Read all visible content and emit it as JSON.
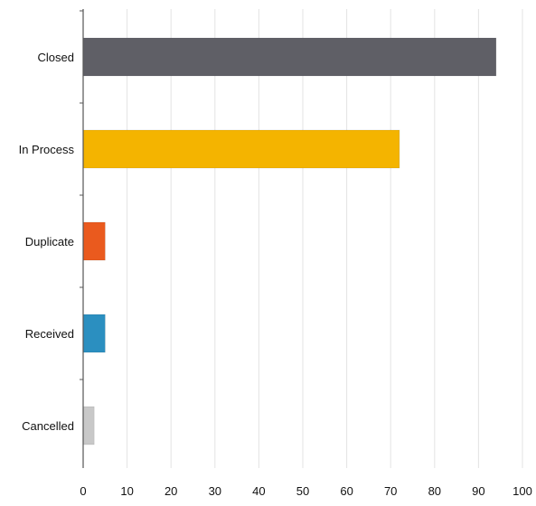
{
  "chart_data": {
    "type": "bar",
    "orientation": "horizontal",
    "title": "",
    "xlabel": "",
    "ylabel": "",
    "categories": [
      "Closed",
      "In Process",
      "Duplicate",
      "Received",
      "Cancelled"
    ],
    "values": [
      94,
      72,
      5,
      5,
      2.5
    ],
    "colors": [
      "#5f5f66",
      "#f4b400",
      "#ea5a1e",
      "#2b8fc0",
      "#c8c8c8"
    ],
    "xlim": [
      0,
      100
    ],
    "xticks": [
      "0",
      "10",
      "20",
      "30",
      "40",
      "50",
      "60",
      "70",
      "80",
      "90",
      "100"
    ],
    "grid": true,
    "legend": false
  }
}
